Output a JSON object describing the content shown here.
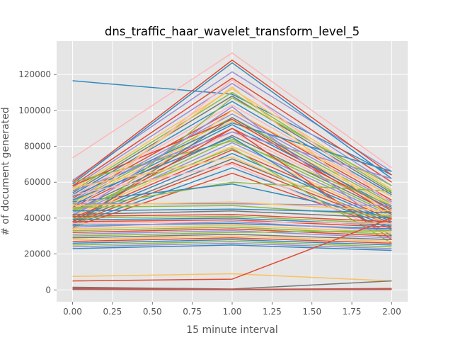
{
  "chart_data": {
    "type": "line",
    "title": "dns_traffic_haar_wavelet_transform_level_5",
    "xlabel": "15 minute interval",
    "ylabel": "# of document generated",
    "x": [
      0,
      1,
      2
    ],
    "xlim": [
      -0.1,
      2.1
    ],
    "ylim": [
      -6600,
      138600
    ],
    "xticks": [
      0.0,
      0.25,
      0.5,
      0.75,
      1.0,
      1.25,
      1.5,
      1.75,
      2.0
    ],
    "xtick_labels": [
      "0.00",
      "0.25",
      "0.50",
      "0.75",
      "1.00",
      "1.25",
      "1.50",
      "1.75",
      "2.00"
    ],
    "yticks": [
      0,
      20000,
      40000,
      60000,
      80000,
      100000,
      120000
    ],
    "ytick_labels": [
      "0",
      "20000",
      "40000",
      "60000",
      "80000",
      "100000",
      "120000"
    ],
    "grid": true,
    "background": "#e5e5e5",
    "palette": [
      "#E24A33",
      "#348ABD",
      "#988ED5",
      "#777777",
      "#FBC15E",
      "#8EBA42",
      "#FFB5B8"
    ],
    "series": [
      {
        "values": [
          116500,
          109000,
          64000
        ],
        "color": "#348ABD"
      },
      {
        "values": [
          73500,
          132000,
          68000
        ],
        "color": "#FFB5B8"
      },
      {
        "values": [
          61000,
          121500,
          66000
        ],
        "color": "#988ED5"
      },
      {
        "values": [
          60000,
          128000,
          64000
        ],
        "color": "#E24A33"
      },
      {
        "values": [
          59000,
          126500,
          62000
        ],
        "color": "#348ABD"
      },
      {
        "values": [
          58000,
          118000,
          60000
        ],
        "color": "#E24A33"
      },
      {
        "values": [
          57000,
          115000,
          58000
        ],
        "color": "#988ED5"
      },
      {
        "values": [
          56000,
          112000,
          56000
        ],
        "color": "#FBC15E"
      },
      {
        "values": [
          55000,
          110000,
          55000
        ],
        "color": "#8EBA42"
      },
      {
        "values": [
          54000,
          108000,
          54000
        ],
        "color": "#777777"
      },
      {
        "values": [
          53000,
          105000,
          53000
        ],
        "color": "#348ABD"
      },
      {
        "values": [
          52000,
          103000,
          52000
        ],
        "color": "#FFB5B8"
      },
      {
        "values": [
          51000,
          100000,
          50000
        ],
        "color": "#E24A33"
      },
      {
        "values": [
          50000,
          98000,
          49000
        ],
        "color": "#988ED5"
      },
      {
        "values": [
          49000,
          96000,
          48000
        ],
        "color": "#8EBA42"
      },
      {
        "values": [
          48000,
          94000,
          47000
        ],
        "color": "#FBC15E"
      },
      {
        "values": [
          47000,
          92000,
          46000
        ],
        "color": "#348ABD"
      },
      {
        "values": [
          46000,
          90000,
          45000
        ],
        "color": "#E24A33"
      },
      {
        "values": [
          45000,
          88000,
          44000
        ],
        "color": "#FFB5B8"
      },
      {
        "values": [
          44000,
          86000,
          43000
        ],
        "color": "#777777"
      },
      {
        "values": [
          43000,
          84000,
          42000
        ],
        "color": "#8EBA42"
      },
      {
        "values": [
          42000,
          82000,
          41000
        ],
        "color": "#988ED5"
      },
      {
        "values": [
          41000,
          80000,
          40000
        ],
        "color": "#FBC15E"
      },
      {
        "values": [
          40000,
          78000,
          39000
        ],
        "color": "#E24A33"
      },
      {
        "values": [
          39000,
          76000,
          38000
        ],
        "color": "#348ABD"
      },
      {
        "values": [
          38000,
          73000,
          37000
        ],
        "color": "#777777"
      },
      {
        "values": [
          37000,
          71000,
          36000
        ],
        "color": "#E24A33"
      },
      {
        "values": [
          36000,
          68000,
          35000
        ],
        "color": "#348ABD"
      },
      {
        "values": [
          35000,
          65000,
          34000
        ],
        "color": "#E24A33"
      },
      {
        "values": [
          45000,
          60000,
          55000
        ],
        "color": "#8EBA42"
      },
      {
        "values": [
          49000,
          59000,
          40000
        ],
        "color": "#348ABD"
      },
      {
        "values": [
          34000,
          107000,
          58000
        ],
        "color": "#8EBA42"
      },
      {
        "values": [
          33000,
          100000,
          52000
        ],
        "color": "#FBC15E"
      },
      {
        "values": [
          52000,
          93000,
          66000
        ],
        "color": "#348ABD"
      },
      {
        "values": [
          58000,
          95000,
          42000
        ],
        "color": "#E24A33"
      },
      {
        "values": [
          60000,
          83000,
          47000
        ],
        "color": "#8EBA42"
      },
      {
        "values": [
          55000,
          88000,
          62000
        ],
        "color": "#988ED5"
      },
      {
        "values": [
          43000,
          117000,
          48000
        ],
        "color": "#FFB5B8"
      },
      {
        "values": [
          47000,
          113000,
          40000
        ],
        "color": "#FBC15E"
      },
      {
        "values": [
          50000,
          85000,
          30000
        ],
        "color": "#348ABD"
      },
      {
        "values": [
          38000,
          90000,
          28000
        ],
        "color": "#E24A33"
      },
      {
        "values": [
          44000,
          79000,
          26000
        ],
        "color": "#8EBA42"
      },
      {
        "values": [
          41000,
          102000,
          33000
        ],
        "color": "#988ED5"
      },
      {
        "values": [
          36000,
          96000,
          44000
        ],
        "color": "#777777"
      },
      {
        "values": [
          57000,
          74000,
          36000
        ],
        "color": "#FBC15E"
      },
      {
        "values": [
          53000,
          70000,
          31000
        ],
        "color": "#FFB5B8"
      },
      {
        "values": [
          48000,
          48000,
          47000
        ],
        "color": "#988ED5"
      },
      {
        "values": [
          47000,
          49000,
          44000
        ],
        "color": "#FBC15E"
      },
      {
        "values": [
          46000,
          47000,
          41000
        ],
        "color": "#8EBA42"
      },
      {
        "values": [
          44000,
          45000,
          43000
        ],
        "color": "#348ABD"
      },
      {
        "values": [
          42000,
          44000,
          40000
        ],
        "color": "#777777"
      },
      {
        "values": [
          41000,
          42000,
          38000
        ],
        "color": "#E24A33"
      },
      {
        "values": [
          40000,
          41000,
          37000
        ],
        "color": "#8EBA42"
      },
      {
        "values": [
          39000,
          40000,
          36000
        ],
        "color": "#348ABD"
      },
      {
        "values": [
          38000,
          39000,
          35000
        ],
        "color": "#E24A33"
      },
      {
        "values": [
          37000,
          38000,
          37000
        ],
        "color": "#FFB5B8"
      },
      {
        "values": [
          36000,
          37000,
          34000
        ],
        "color": "#348ABD"
      },
      {
        "values": [
          35000,
          38000,
          33000
        ],
        "color": "#988ED5"
      },
      {
        "values": [
          34000,
          36000,
          32000
        ],
        "color": "#FBC15E"
      },
      {
        "values": [
          33000,
          35000,
          31000
        ],
        "color": "#8EBA42"
      },
      {
        "values": [
          32000,
          34000,
          30000
        ],
        "color": "#E24A33"
      },
      {
        "values": [
          31000,
          33000,
          29000
        ],
        "color": "#988ED5"
      },
      {
        "values": [
          30000,
          32000,
          33000
        ],
        "color": "#8EBA42"
      },
      {
        "values": [
          29000,
          31000,
          28000
        ],
        "color": "#777777"
      },
      {
        "values": [
          28000,
          30000,
          27000
        ],
        "color": "#FBC15E"
      },
      {
        "values": [
          27000,
          29000,
          26000
        ],
        "color": "#E24A33"
      },
      {
        "values": [
          26000,
          28000,
          25000
        ],
        "color": "#348ABD"
      },
      {
        "values": [
          25000,
          27000,
          24000
        ],
        "color": "#8EBA42"
      },
      {
        "values": [
          24000,
          26000,
          23000
        ],
        "color": "#988ED5"
      },
      {
        "values": [
          23000,
          25000,
          22000
        ],
        "color": "#348ABD"
      },
      {
        "values": [
          7500,
          9000,
          5000
        ],
        "color": "#FBC15E"
      },
      {
        "values": [
          5000,
          6000,
          40000
        ],
        "color": "#E24A33"
      },
      {
        "values": [
          1500,
          500,
          5000
        ],
        "color": "#777777"
      },
      {
        "values": [
          1000,
          300,
          800
        ],
        "color": "#E24A33"
      },
      {
        "values": [
          500,
          200,
          400
        ],
        "color": "#348ABD"
      },
      {
        "values": [
          200,
          100,
          200
        ],
        "color": "#E24A33"
      }
    ]
  }
}
